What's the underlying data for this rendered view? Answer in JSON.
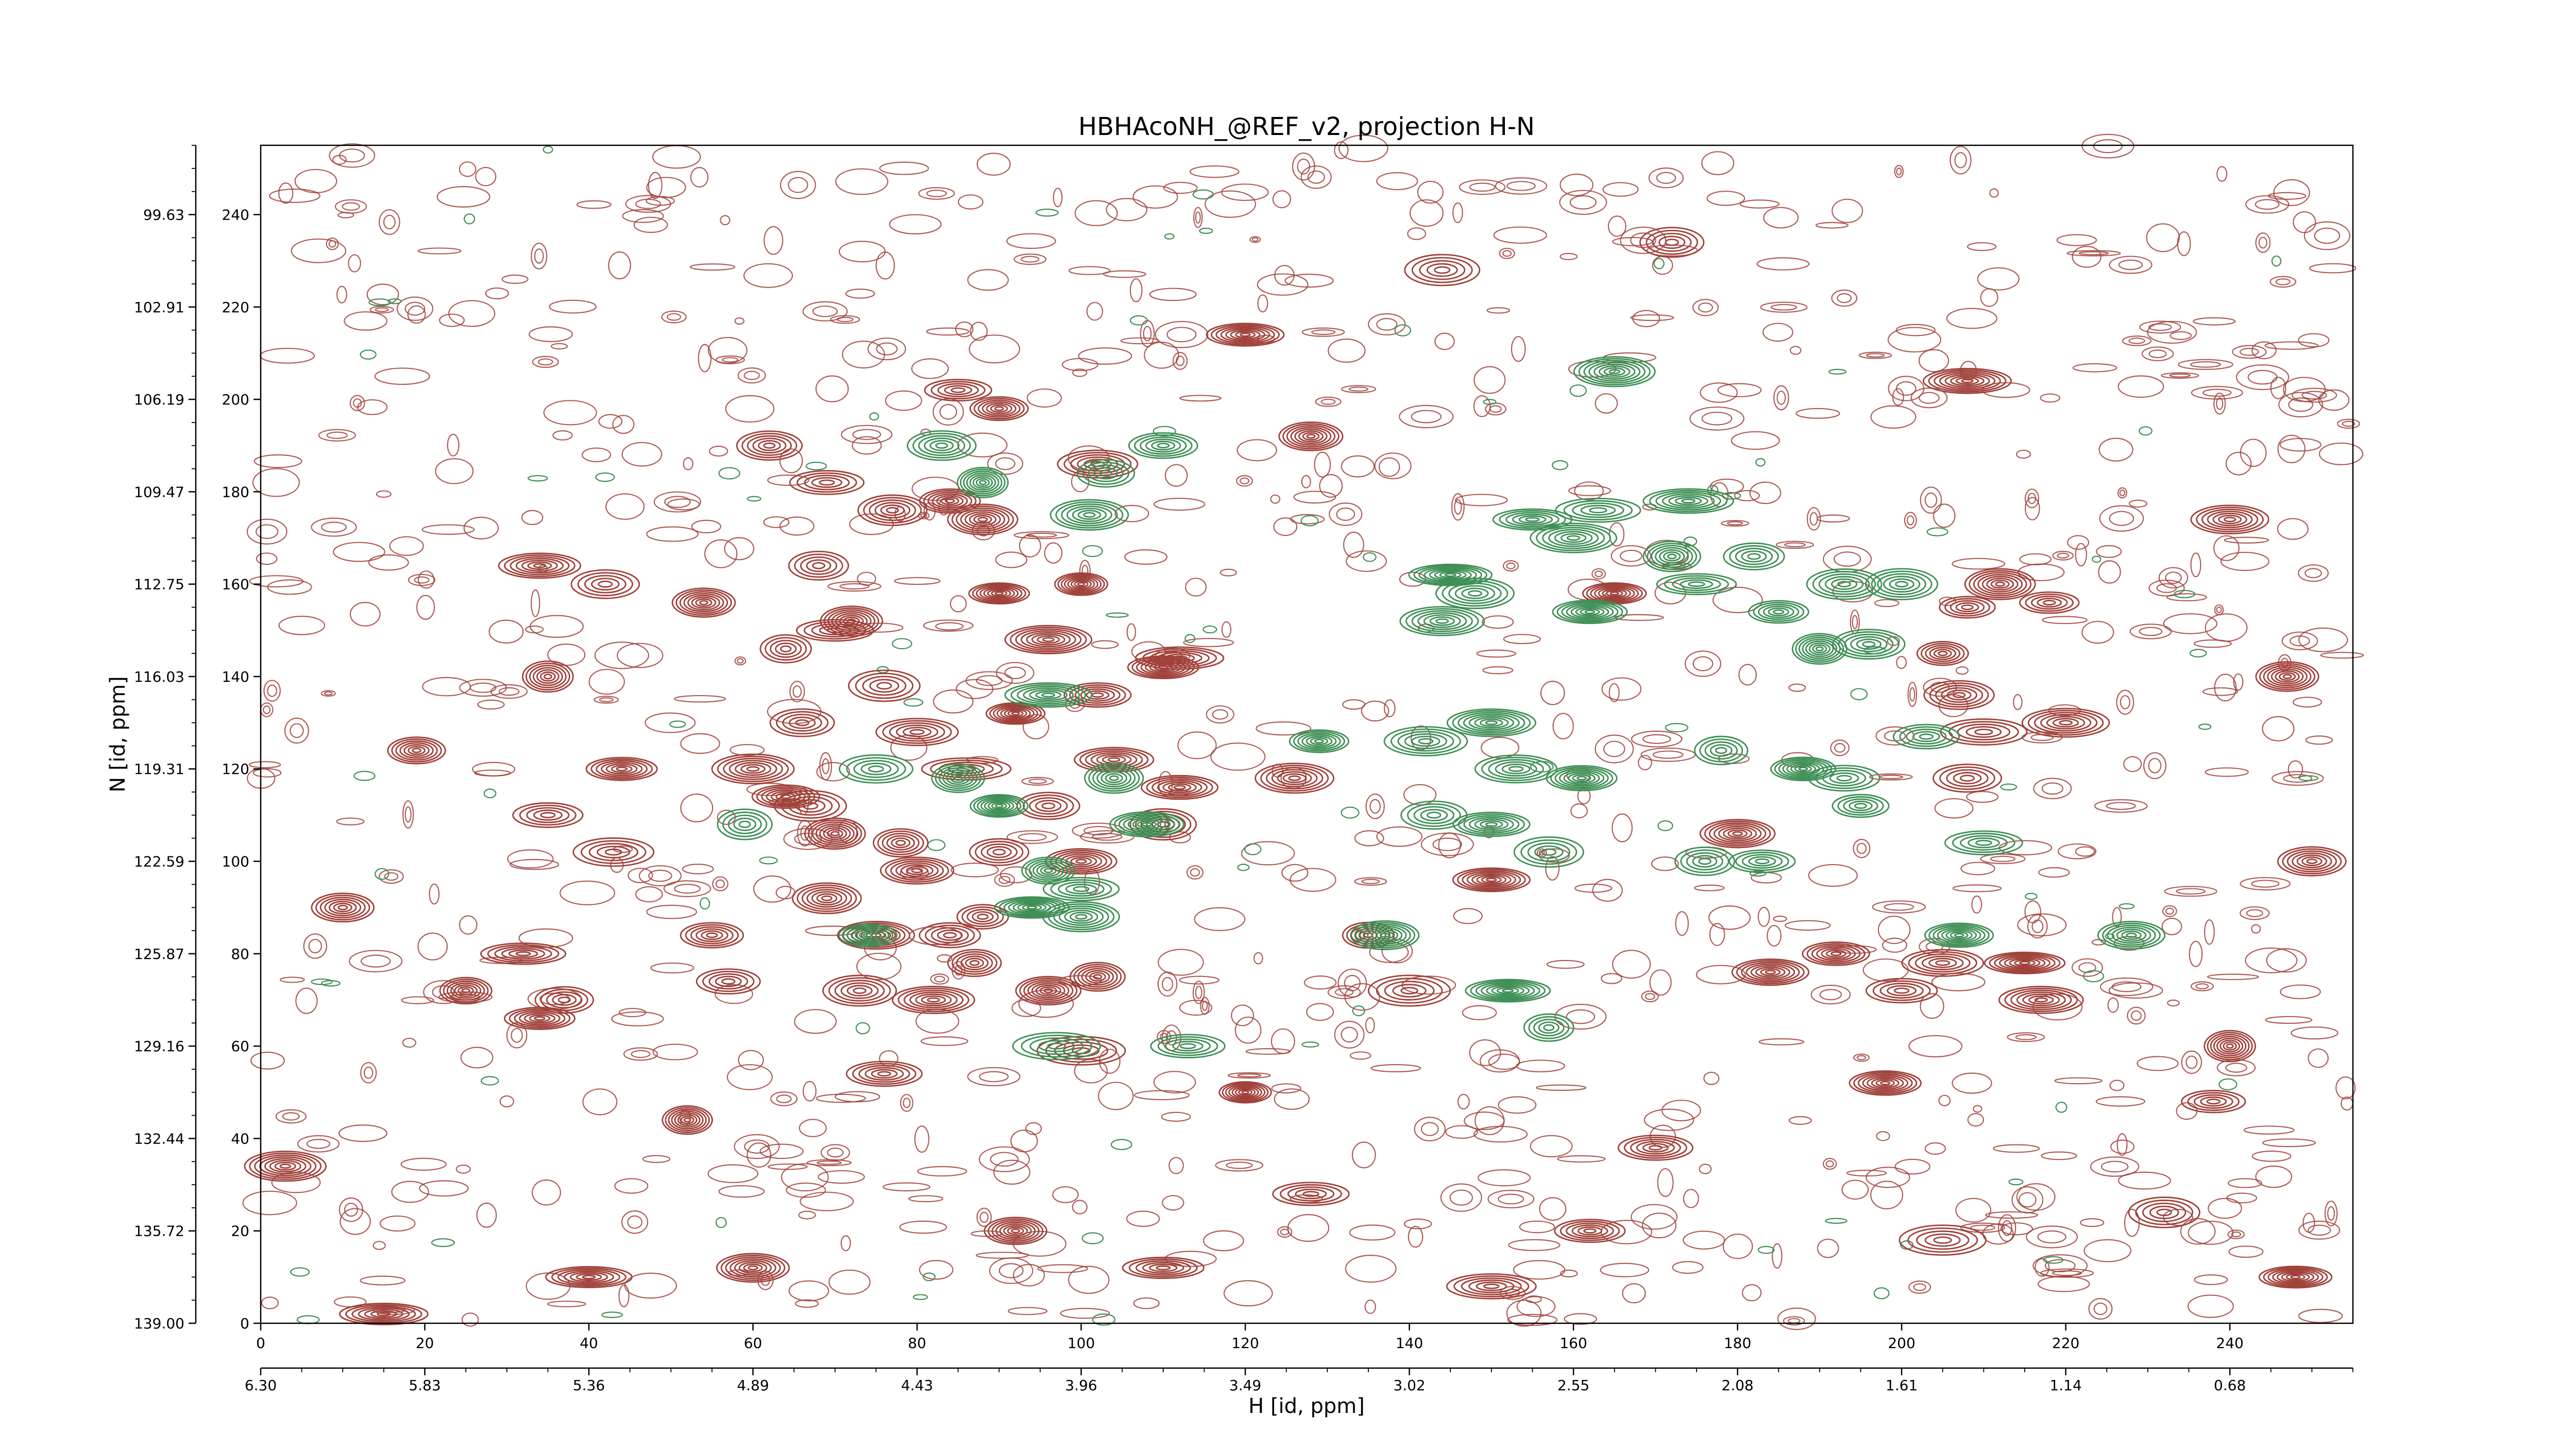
{
  "chart_data": {
    "type": "contour",
    "title": "HBHAcoNH_@REF_v2, projection H-N",
    "xlabel": "H [id, ppm]",
    "ylabel": "N [id, ppm]",
    "index_x_ticks": [
      "0",
      "20",
      "40",
      "60",
      "80",
      "100",
      "120",
      "140",
      "160",
      "180",
      "200",
      "220",
      "240"
    ],
    "index_x_range": [
      0,
      255
    ],
    "ppm_x_ticks": [
      "6.30",
      "5.83",
      "5.36",
      "4.89",
      "4.43",
      "3.96",
      "3.49",
      "3.02",
      "2.55",
      "2.08",
      "1.61",
      "1.14",
      "0.68"
    ],
    "index_y_ticks": [
      "0",
      "20",
      "40",
      "60",
      "80",
      "100",
      "120",
      "140",
      "160",
      "180",
      "200",
      "220",
      "240"
    ],
    "index_y_range": [
      0,
      255
    ],
    "ppm_y_ticks": [
      "139.00",
      "135.72",
      "132.44",
      "129.16",
      "125.87",
      "122.59",
      "119.31",
      "116.03",
      "112.75",
      "109.47",
      "106.19",
      "102.91",
      "99.63"
    ],
    "colors": {
      "positive": "#a0413a",
      "negative": "#3f8f56"
    },
    "positive_peaks": [
      [
        15,
        2
      ],
      [
        60,
        12
      ],
      [
        92,
        20
      ],
      [
        150,
        8
      ],
      [
        205,
        18
      ],
      [
        232,
        24
      ],
      [
        3,
        34
      ],
      [
        52,
        44
      ],
      [
        170,
        38
      ],
      [
        120,
        50
      ],
      [
        198,
        52
      ],
      [
        240,
        60
      ],
      [
        76,
        54
      ],
      [
        100,
        59
      ],
      [
        140,
        72
      ],
      [
        184,
        76
      ],
      [
        215,
        78
      ],
      [
        34,
        66
      ],
      [
        25,
        72
      ],
      [
        10,
        90
      ],
      [
        37,
        70
      ],
      [
        57,
        74
      ],
      [
        73,
        72
      ],
      [
        82,
        70
      ],
      [
        87,
        78
      ],
      [
        96,
        72
      ],
      [
        102,
        75
      ],
      [
        32,
        80
      ],
      [
        55,
        84
      ],
      [
        43,
        102
      ],
      [
        75,
        84
      ],
      [
        84,
        84
      ],
      [
        88,
        88
      ],
      [
        69,
        92
      ],
      [
        90,
        102
      ],
      [
        80,
        98
      ],
      [
        70,
        106
      ],
      [
        78,
        104
      ],
      [
        96,
        112
      ],
      [
        64,
        114
      ],
      [
        100,
        100
      ],
      [
        110,
        108
      ],
      [
        19,
        124
      ],
      [
        35,
        110
      ],
      [
        44,
        120
      ],
      [
        60,
        120
      ],
      [
        67,
        112
      ],
      [
        86,
        120
      ],
      [
        104,
        122
      ],
      [
        112,
        116
      ],
      [
        126,
        118
      ],
      [
        80,
        128
      ],
      [
        66,
        130
      ],
      [
        92,
        132
      ],
      [
        102,
        136
      ],
      [
        76,
        138
      ],
      [
        110,
        142
      ],
      [
        64,
        146
      ],
      [
        72,
        152
      ],
      [
        35,
        140
      ],
      [
        70,
        150
      ],
      [
        96,
        148
      ],
      [
        112,
        144
      ],
      [
        90,
        158
      ],
      [
        100,
        160
      ],
      [
        68,
        164
      ],
      [
        54,
        156
      ],
      [
        42,
        160
      ],
      [
        34,
        164
      ],
      [
        77,
        176
      ],
      [
        69,
        182
      ],
      [
        84,
        178
      ],
      [
        88,
        174
      ],
      [
        102,
        186
      ],
      [
        62,
        190
      ],
      [
        85,
        202
      ],
      [
        90,
        198
      ],
      [
        135,
        84
      ],
      [
        150,
        96
      ],
      [
        192,
        80
      ],
      [
        200,
        72
      ],
      [
        205,
        78
      ],
      [
        217,
        70
      ],
      [
        180,
        106
      ],
      [
        208,
        118
      ],
      [
        210,
        128
      ],
      [
        220,
        130
      ],
      [
        205,
        145
      ],
      [
        208,
        155
      ],
      [
        212,
        160
      ],
      [
        218,
        156
      ],
      [
        207,
        136
      ],
      [
        165,
        158
      ],
      [
        128,
        192
      ],
      [
        120,
        214
      ],
      [
        144,
        228
      ],
      [
        172,
        234
      ],
      [
        208,
        204
      ],
      [
        240,
        174
      ],
      [
        247,
        140
      ],
      [
        250,
        100
      ],
      [
        238,
        48
      ],
      [
        162,
        20
      ],
      [
        110,
        12
      ],
      [
        40,
        10
      ],
      [
        248,
        10
      ],
      [
        128,
        28
      ]
    ],
    "negative_peaks": [
      [
        83,
        190
      ],
      [
        88,
        182
      ],
      [
        103,
        184
      ],
      [
        110,
        190
      ],
      [
        101,
        175
      ],
      [
        96,
        136
      ],
      [
        75,
        120
      ],
      [
        85,
        118
      ],
      [
        90,
        112
      ],
      [
        104,
        118
      ],
      [
        108,
        108
      ],
      [
        96,
        98
      ],
      [
        100,
        94
      ],
      [
        74,
        84
      ],
      [
        100,
        88
      ],
      [
        94,
        90
      ],
      [
        59,
        108
      ],
      [
        97,
        60
      ],
      [
        113,
        60
      ],
      [
        137,
        84
      ],
      [
        143,
        110
      ],
      [
        150,
        108
      ],
      [
        157,
        102
      ],
      [
        150,
        130
      ],
      [
        153,
        120
      ],
      [
        161,
        118
      ],
      [
        142,
        126
      ],
      [
        129,
        126
      ],
      [
        144,
        152
      ],
      [
        155,
        174
      ],
      [
        160,
        170
      ],
      [
        145,
        162
      ],
      [
        148,
        158
      ],
      [
        162,
        154
      ],
      [
        172,
        166
      ],
      [
        175,
        160
      ],
      [
        178,
        124
      ],
      [
        188,
        120
      ],
      [
        193,
        118
      ],
      [
        195,
        112
      ],
      [
        203,
        127
      ],
      [
        193,
        160
      ],
      [
        200,
        160
      ],
      [
        182,
        166
      ],
      [
        185,
        154
      ],
      [
        190,
        146
      ],
      [
        196,
        147
      ],
      [
        210,
        104
      ],
      [
        207,
        84
      ],
      [
        228,
        84
      ],
      [
        152,
        72
      ],
      [
        157,
        64
      ],
      [
        183,
        100
      ],
      [
        176,
        100
      ],
      [
        163,
        176
      ],
      [
        174,
        178
      ],
      [
        165,
        206
      ]
    ]
  }
}
